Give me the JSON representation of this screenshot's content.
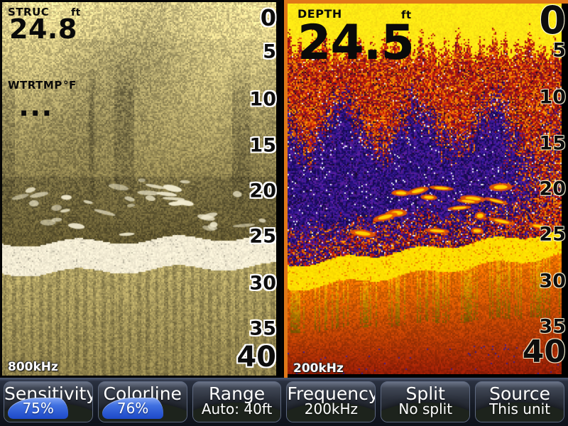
{
  "left_panel": {
    "type_label": "STRUC",
    "unit": "ft",
    "value": "24.8",
    "watertemp_label": "WTRTMP",
    "watertemp_unit": "°F",
    "watertemp_value": "---",
    "frequency_badge": "800kHz",
    "depth_scale": [
      "0",
      "5",
      "10",
      "15",
      "20",
      "25",
      "30",
      "35",
      "40"
    ]
  },
  "right_panel": {
    "type_label": "DEPTH",
    "unit": "ft",
    "value": "24.5",
    "frequency_badge": "200kHz",
    "depth_scale": [
      "0",
      "5",
      "10",
      "15",
      "20",
      "25",
      "30",
      "35",
      "40"
    ],
    "selected": true
  },
  "menu": {
    "items": [
      {
        "label": "Sensitivity",
        "value": "75%",
        "progress": 75
      },
      {
        "label": "Colorline",
        "value": "76%",
        "progress": 76
      },
      {
        "label": "Range",
        "value": "Auto: 40ft"
      },
      {
        "label": "Frequency",
        "value": "200kHz"
      },
      {
        "label": "Split",
        "value": "No split"
      },
      {
        "label": "Source",
        "value": "This unit"
      }
    ]
  },
  "colors": {
    "selection_border": "#e07818",
    "progress_fill": "#2e62dc",
    "menu_background": "#151a24"
  }
}
